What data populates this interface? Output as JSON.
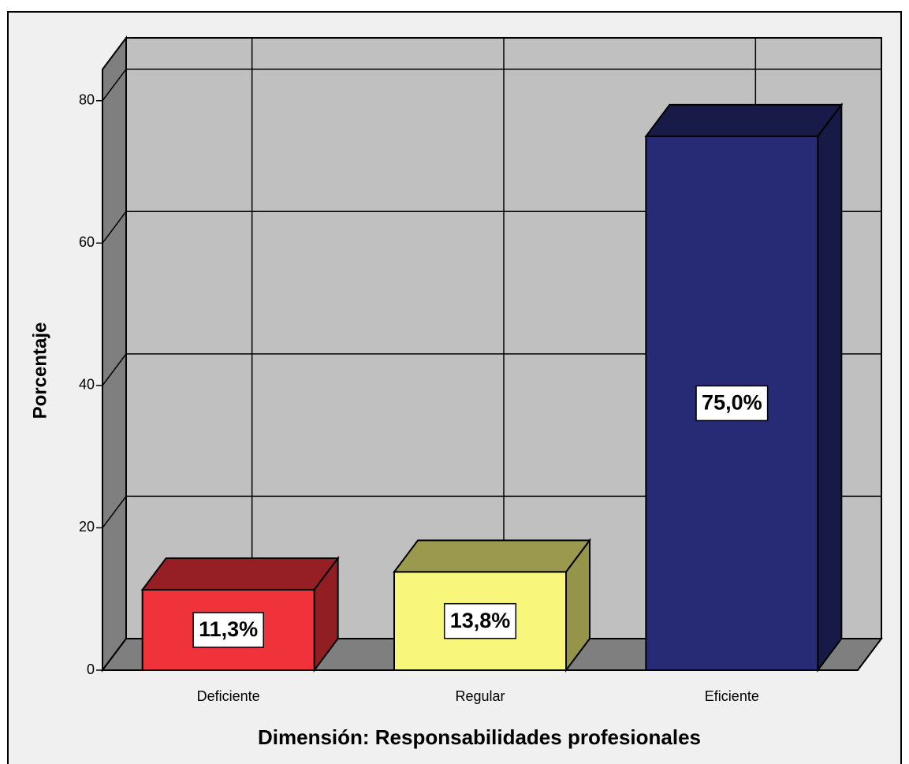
{
  "chart_data": {
    "type": "bar3d",
    "xlabel": "Dimensión: Responsabilidades profesionales",
    "ylabel": "Porcentaje",
    "categories": [
      "Deficiente",
      "Regular",
      "Eficiente"
    ],
    "values": [
      11.3,
      13.8,
      75.0
    ],
    "value_labels": [
      "11,3%",
      "13,8%",
      "75,0%"
    ],
    "colors": [
      "#f0323a",
      "#f9f67c",
      "#272a74"
    ],
    "ylim": [
      0,
      84.4
    ],
    "yticks": [
      0,
      20,
      40,
      60,
      80
    ],
    "grid": true
  }
}
